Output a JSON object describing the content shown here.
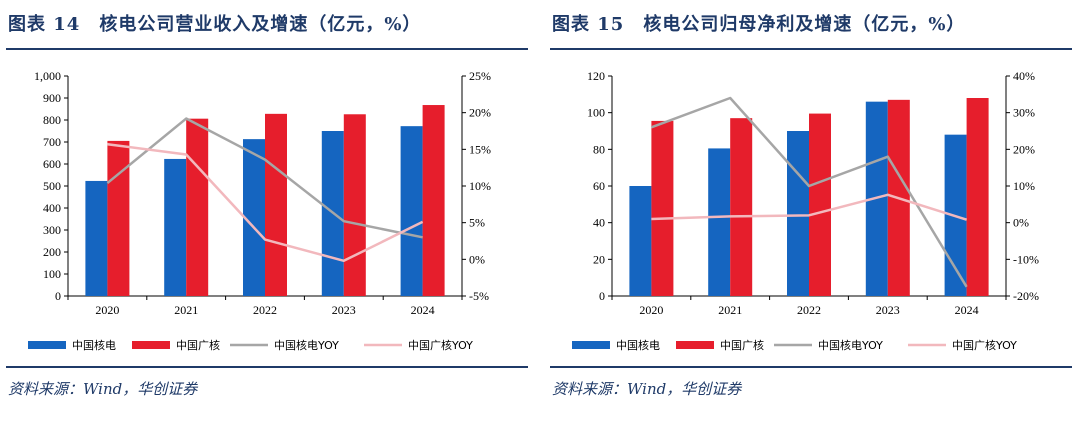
{
  "colors": {
    "blue": "#1565c0",
    "red": "#e61e2c",
    "gray": "#a6a6a6",
    "pink": "#f2b8bd",
    "title": "#1f3a68"
  },
  "left": {
    "title": "图表 14　核电公司营业收入及增速（亿元，%）",
    "source": "资料来源：Wind，华创证券",
    "legend": [
      "中国核电",
      "中国广核",
      "中国核电YOY",
      "中国广核YOY"
    ]
  },
  "right": {
    "title": "图表 15　核电公司归母净利及增速（亿元，%）",
    "source": "资料来源：Wind，华创证券",
    "legend": [
      "中国核电",
      "中国广核",
      "中国核电YOY",
      "中国广核YOY"
    ]
  },
  "chart_data": [
    {
      "type": "bar",
      "title": "图表 14　核电公司营业收入及增速（亿元，%）",
      "categories": [
        "2020",
        "2021",
        "2022",
        "2023",
        "2024"
      ],
      "ylim": [
        0,
        1000
      ],
      "yticks": [
        "1,000",
        "900",
        "800",
        "700",
        "600",
        "500",
        "400",
        "300",
        "200",
        "100",
        "0"
      ],
      "y2lim": [
        -5,
        25
      ],
      "y2ticks": [
        "25%",
        "20%",
        "15%",
        "10%",
        "5%",
        "0%",
        "-5%"
      ],
      "series": [
        {
          "name": "中国核电",
          "kind": "bar",
          "values": [
            523,
            623,
            713,
            750,
            772
          ]
        },
        {
          "name": "中国广核",
          "kind": "bar",
          "values": [
            705,
            806,
            828,
            826,
            868
          ]
        },
        {
          "name": "中国核电YOY",
          "kind": "line",
          "axis": "right",
          "values": [
            10.4,
            19.2,
            13.6,
            5.2,
            3.0
          ]
        },
        {
          "name": "中国广核YOY",
          "kind": "line",
          "axis": "right",
          "values": [
            15.7,
            14.3,
            2.7,
            -0.2,
            5.1
          ]
        }
      ],
      "grid": false,
      "legend_position": "bottom"
    },
    {
      "type": "bar",
      "title": "图表 15　核电公司归母净利及增速（亿元，%）",
      "categories": [
        "2020",
        "2021",
        "2022",
        "2023",
        "2024"
      ],
      "ylim": [
        0,
        120
      ],
      "yticks": [
        "120",
        "100",
        "80",
        "60",
        "40",
        "20",
        "0"
      ],
      "y2lim": [
        -20,
        40
      ],
      "y2ticks": [
        "40%",
        "30%",
        "20%",
        "10%",
        "0%",
        "-10%",
        "-20%"
      ],
      "series": [
        {
          "name": "中国核电",
          "kind": "bar",
          "values": [
            60,
            80.5,
            90,
            106,
            88
          ]
        },
        {
          "name": "中国广核",
          "kind": "bar",
          "values": [
            95.5,
            97,
            99.5,
            107,
            108
          ]
        },
        {
          "name": "中国核电YOY",
          "kind": "line",
          "axis": "right",
          "values": [
            26,
            34,
            10,
            18,
            -17.5
          ]
        },
        {
          "name": "中国广核YOY",
          "kind": "line",
          "axis": "right",
          "values": [
            1,
            1.7,
            2,
            7.6,
            0.8
          ]
        }
      ],
      "grid": false,
      "legend_position": "bottom"
    }
  ]
}
